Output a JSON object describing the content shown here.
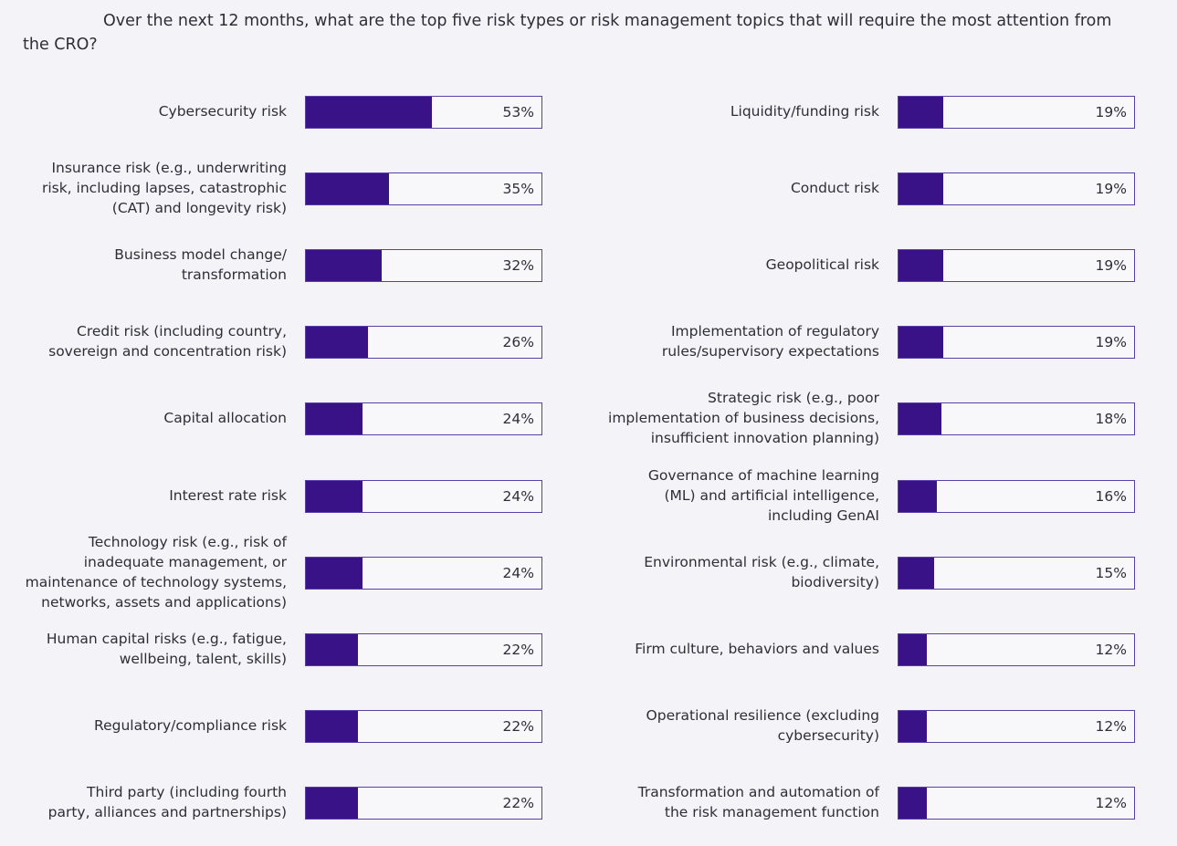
{
  "chart_data": {
    "type": "bar",
    "orientation": "horizontal",
    "title": "Over the next 12 months, what are the top five risk types or risk management topics that will require the most attention from the CRO?",
    "value_format": "percent",
    "xlim": [
      0,
      100
    ],
    "bar_color": "#3a1288",
    "background": "#f4f3f7",
    "columns": [
      {
        "categories": [
          "Cybersecurity risk",
          "Insurance risk (e.g., underwriting\nrisk, including lapses, catastrophic\n(CAT) and longevity risk)",
          "Business model change/\ntransformation",
          "Credit risk (including country,\nsovereign and concentration risk)",
          "Capital allocation",
          "Interest rate risk",
          "Technology risk (e.g., risk of\ninadequate management, or\nmaintenance of technology systems,\nnetworks, assets and applications)",
          "Human capital risks (e.g., fatigue,\nwellbeing, talent, skills)",
          "Regulatory/compliance risk",
          "Third party (including fourth\nparty, alliances and partnerships)"
        ],
        "values": [
          53,
          35,
          32,
          26,
          24,
          24,
          24,
          22,
          22,
          22
        ]
      },
      {
        "categories": [
          "Liquidity/funding risk",
          "Conduct risk",
          "Geopolitical risk",
          "Implementation of regulatory\nrules/supervisory expectations",
          "Strategic risk (e.g., poor\nimplementation of business decisions,\ninsufficient innovation planning)",
          "Governance of machine learning\n(ML) and artificial intelligence,\nincluding GenAI",
          "Environmental risk (e.g., climate,\nbiodiversity)",
          "Firm culture, behaviors and values",
          "Operational resilience (excluding\ncybersecurity)",
          "Transformation and automation of\nthe risk management function"
        ],
        "values": [
          19,
          19,
          19,
          19,
          18,
          16,
          15,
          12,
          12,
          12
        ]
      }
    ]
  }
}
